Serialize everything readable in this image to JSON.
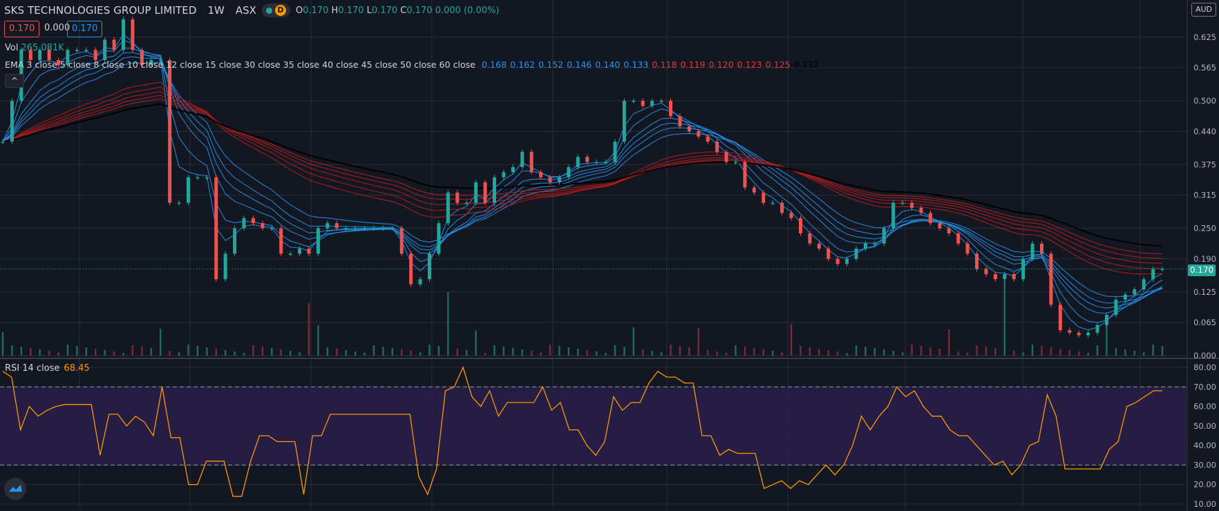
{
  "header": {
    "symbol": "SKS TECHNOLOGIES GROUP LIMITED",
    "interval": "1W",
    "exchange": "ASX",
    "badge": "D",
    "ohlc": {
      "o_label": "O",
      "o": "0.170",
      "h_label": "H",
      "h": "0.170",
      "l_label": "L",
      "l": "0.170",
      "c_label": "C",
      "c": "0.170",
      "change": "0.000 (0.00%)"
    }
  },
  "price_boxes": {
    "bid": "0.170",
    "spread": "0.000",
    "ask": "0.170"
  },
  "currency": "AUD",
  "volume": {
    "label": "Vol",
    "value": "265.081K"
  },
  "ema_legend": {
    "label": "EMA 3 close 5 close 8 close 10 close 12 close 15 close 30 close 35 close 40 close 45 close 50 close 60 close",
    "values": [
      {
        "v": "0.168",
        "color": "#2196f3"
      },
      {
        "v": "0.162",
        "color": "#2196f3"
      },
      {
        "v": "0.152",
        "color": "#2196f3"
      },
      {
        "v": "0.146",
        "color": "#2196f3"
      },
      {
        "v": "0.140",
        "color": "#2196f3"
      },
      {
        "v": "0.133",
        "color": "#2196f3"
      },
      {
        "v": "0.118",
        "color": "#e53935"
      },
      {
        "v": "0.119",
        "color": "#e53935"
      },
      {
        "v": "0.120",
        "color": "#e53935"
      },
      {
        "v": "0.123",
        "color": "#e53935"
      },
      {
        "v": "0.125",
        "color": "#e53935"
      },
      {
        "v": "0.132",
        "color": "#000000"
      }
    ]
  },
  "collapse_icon": "chevron-up-icon",
  "rsi": {
    "label": "RSI 14 close",
    "value": "68.45"
  },
  "last_price_label": "0.170",
  "colors": {
    "up": "#26a69a",
    "down": "#ef5350",
    "bg": "#131722",
    "rsi": "#ff9800",
    "rsi_band": "#2a1f4a"
  },
  "chart_data": [
    {
      "type": "line",
      "series": [
        {
          "name": "SKS TECHNOLOGIES GROUP LIMITED",
          "values": [
            0.42,
            0.5,
            0.6,
            0.58,
            0.6,
            0.58,
            0.57,
            0.6,
            0.6,
            0.6,
            0.58,
            0.62,
            0.6,
            0.66,
            0.6,
            0.57,
            0.58,
            0.58,
            0.3,
            0.3,
            0.35,
            0.35,
            0.35,
            0.15,
            0.2,
            0.25,
            0.27,
            0.26,
            0.25,
            0.25,
            0.2,
            0.2,
            0.21,
            0.2,
            0.25,
            0.26,
            0.25,
            0.25,
            0.25,
            0.25,
            0.25,
            0.25,
            0.25,
            0.2,
            0.14,
            0.15,
            0.2,
            0.26,
            0.32,
            0.3,
            0.3,
            0.34,
            0.3,
            0.35,
            0.36,
            0.37,
            0.4,
            0.36,
            0.35,
            0.34,
            0.35,
            0.37,
            0.39,
            0.38,
            0.38,
            0.38,
            0.42,
            0.5,
            0.5,
            0.49,
            0.5,
            0.5,
            0.47,
            0.45,
            0.44,
            0.43,
            0.42,
            0.4,
            0.38,
            0.38,
            0.33,
            0.32,
            0.3,
            0.3,
            0.28,
            0.27,
            0.24,
            0.22,
            0.21,
            0.19,
            0.18,
            0.19,
            0.21,
            0.22,
            0.22,
            0.25,
            0.3,
            0.3,
            0.29,
            0.28,
            0.26,
            0.25,
            0.24,
            0.22,
            0.2,
            0.17,
            0.16,
            0.15,
            0.16,
            0.15,
            0.19,
            0.22,
            0.2,
            0.1,
            0.05,
            0.045,
            0.04,
            0.045,
            0.06,
            0.08,
            0.11,
            0.12,
            0.13,
            0.15,
            0.17,
            0.17
          ]
        },
        {
          "name": "EMA 3",
          "values": [
            0.168
          ]
        },
        {
          "name": "EMA 60",
          "values": [
            0.132
          ]
        }
      ],
      "y_ticks": [
        "0.625",
        "0.565",
        "0.500",
        "0.440",
        "0.375",
        "0.315",
        "0.250",
        "0.190",
        "0.125",
        "0.065",
        "0.000"
      ],
      "ylim": [
        0,
        0.66
      ]
    },
    {
      "type": "line",
      "series": [
        {
          "name": "RSI 14 close",
          "values": [
            78,
            75,
            48,
            60,
            55,
            58,
            60,
            61,
            61,
            61,
            61,
            35,
            56,
            56,
            50,
            55,
            52,
            45,
            70,
            44,
            44,
            20,
            20,
            32,
            32,
            32,
            14,
            14,
            32,
            45,
            45,
            42,
            42,
            42,
            15,
            45,
            45,
            56,
            56,
            56,
            56,
            56,
            56,
            56,
            56,
            56,
            56,
            24,
            15,
            28,
            68,
            70,
            80,
            65,
            60,
            68,
            55,
            62,
            62,
            62,
            62,
            70,
            58,
            62,
            48,
            48,
            40,
            35,
            42,
            65,
            58,
            62,
            62,
            72,
            78,
            75,
            75,
            72,
            72,
            45,
            45,
            35,
            38,
            36,
            36,
            36,
            18,
            20,
            22,
            18,
            22,
            20,
            25,
            30,
            25,
            30,
            40,
            55,
            48,
            55,
            60,
            70,
            65,
            68,
            60,
            55,
            55,
            48,
            45,
            45,
            40,
            35,
            30,
            32,
            25,
            30,
            40,
            42,
            66,
            55,
            28,
            28,
            28,
            28,
            28,
            38,
            42,
            60,
            62,
            65,
            68,
            68
          ]
        }
      ],
      "y_ticks": [
        "80.00",
        "70.00",
        "60.00",
        "50.00",
        "40.00",
        "30.00",
        "20.00",
        "10.00"
      ],
      "ylim": [
        10,
        80
      ],
      "bands": [
        30,
        70
      ]
    }
  ]
}
